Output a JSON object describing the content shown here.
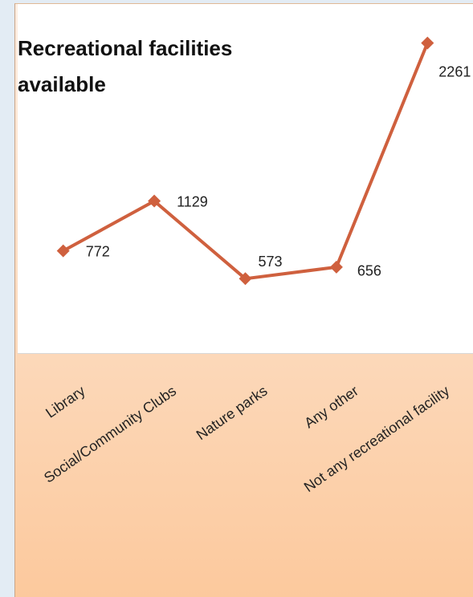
{
  "chart_data": {
    "type": "line",
    "title": "Recreational facilities available",
    "categories": [
      "Library",
      "Social/Community Clubs",
      "Nature parks",
      "Any other",
      "Not any recreational facility"
    ],
    "values": [
      772,
      1129,
      573,
      656,
      2261
    ],
    "color": "#cf603e",
    "ylim": [
      0,
      2500
    ]
  }
}
